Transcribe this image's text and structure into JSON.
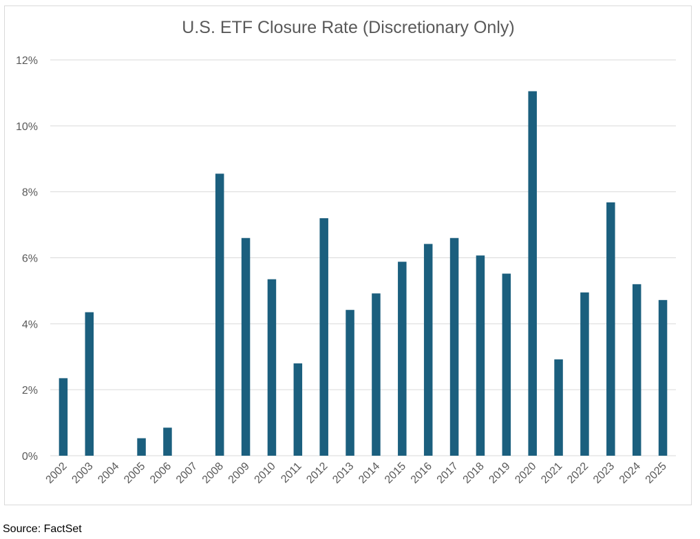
{
  "source_text": "Source: FactSet",
  "colors": {
    "bar": "#1b5f7e",
    "grid": "#d9d9d9",
    "tick_text": "#595959",
    "title_text": "#595959"
  },
  "chart_data": {
    "type": "bar",
    "title": "U.S. ETF Closure Rate (Discretionary Only)",
    "xlabel": "",
    "ylabel": "",
    "categories": [
      "2002",
      "2003",
      "2004",
      "2005",
      "2006",
      "2007",
      "2008",
      "2009",
      "2010",
      "2011",
      "2012",
      "2013",
      "2014",
      "2015",
      "2016",
      "2017",
      "2018",
      "2019",
      "2020",
      "2021",
      "2022",
      "2023",
      "2024",
      "2025"
    ],
    "series": [
      {
        "values": [
          2.35,
          4.35,
          0,
          0.53,
          0.85,
          0,
          8.55,
          6.6,
          5.35,
          2.8,
          7.2,
          4.42,
          4.92,
          5.88,
          6.42,
          6.6,
          6.07,
          5.52,
          11.05,
          2.92,
          4.95,
          7.68,
          5.2,
          4.72
        ]
      }
    ],
    "ylim": [
      0,
      12
    ],
    "yticks": [
      "0%",
      "2%",
      "4%",
      "6%",
      "8%",
      "10%",
      "12%"
    ],
    "grid": true,
    "legend": "none"
  }
}
